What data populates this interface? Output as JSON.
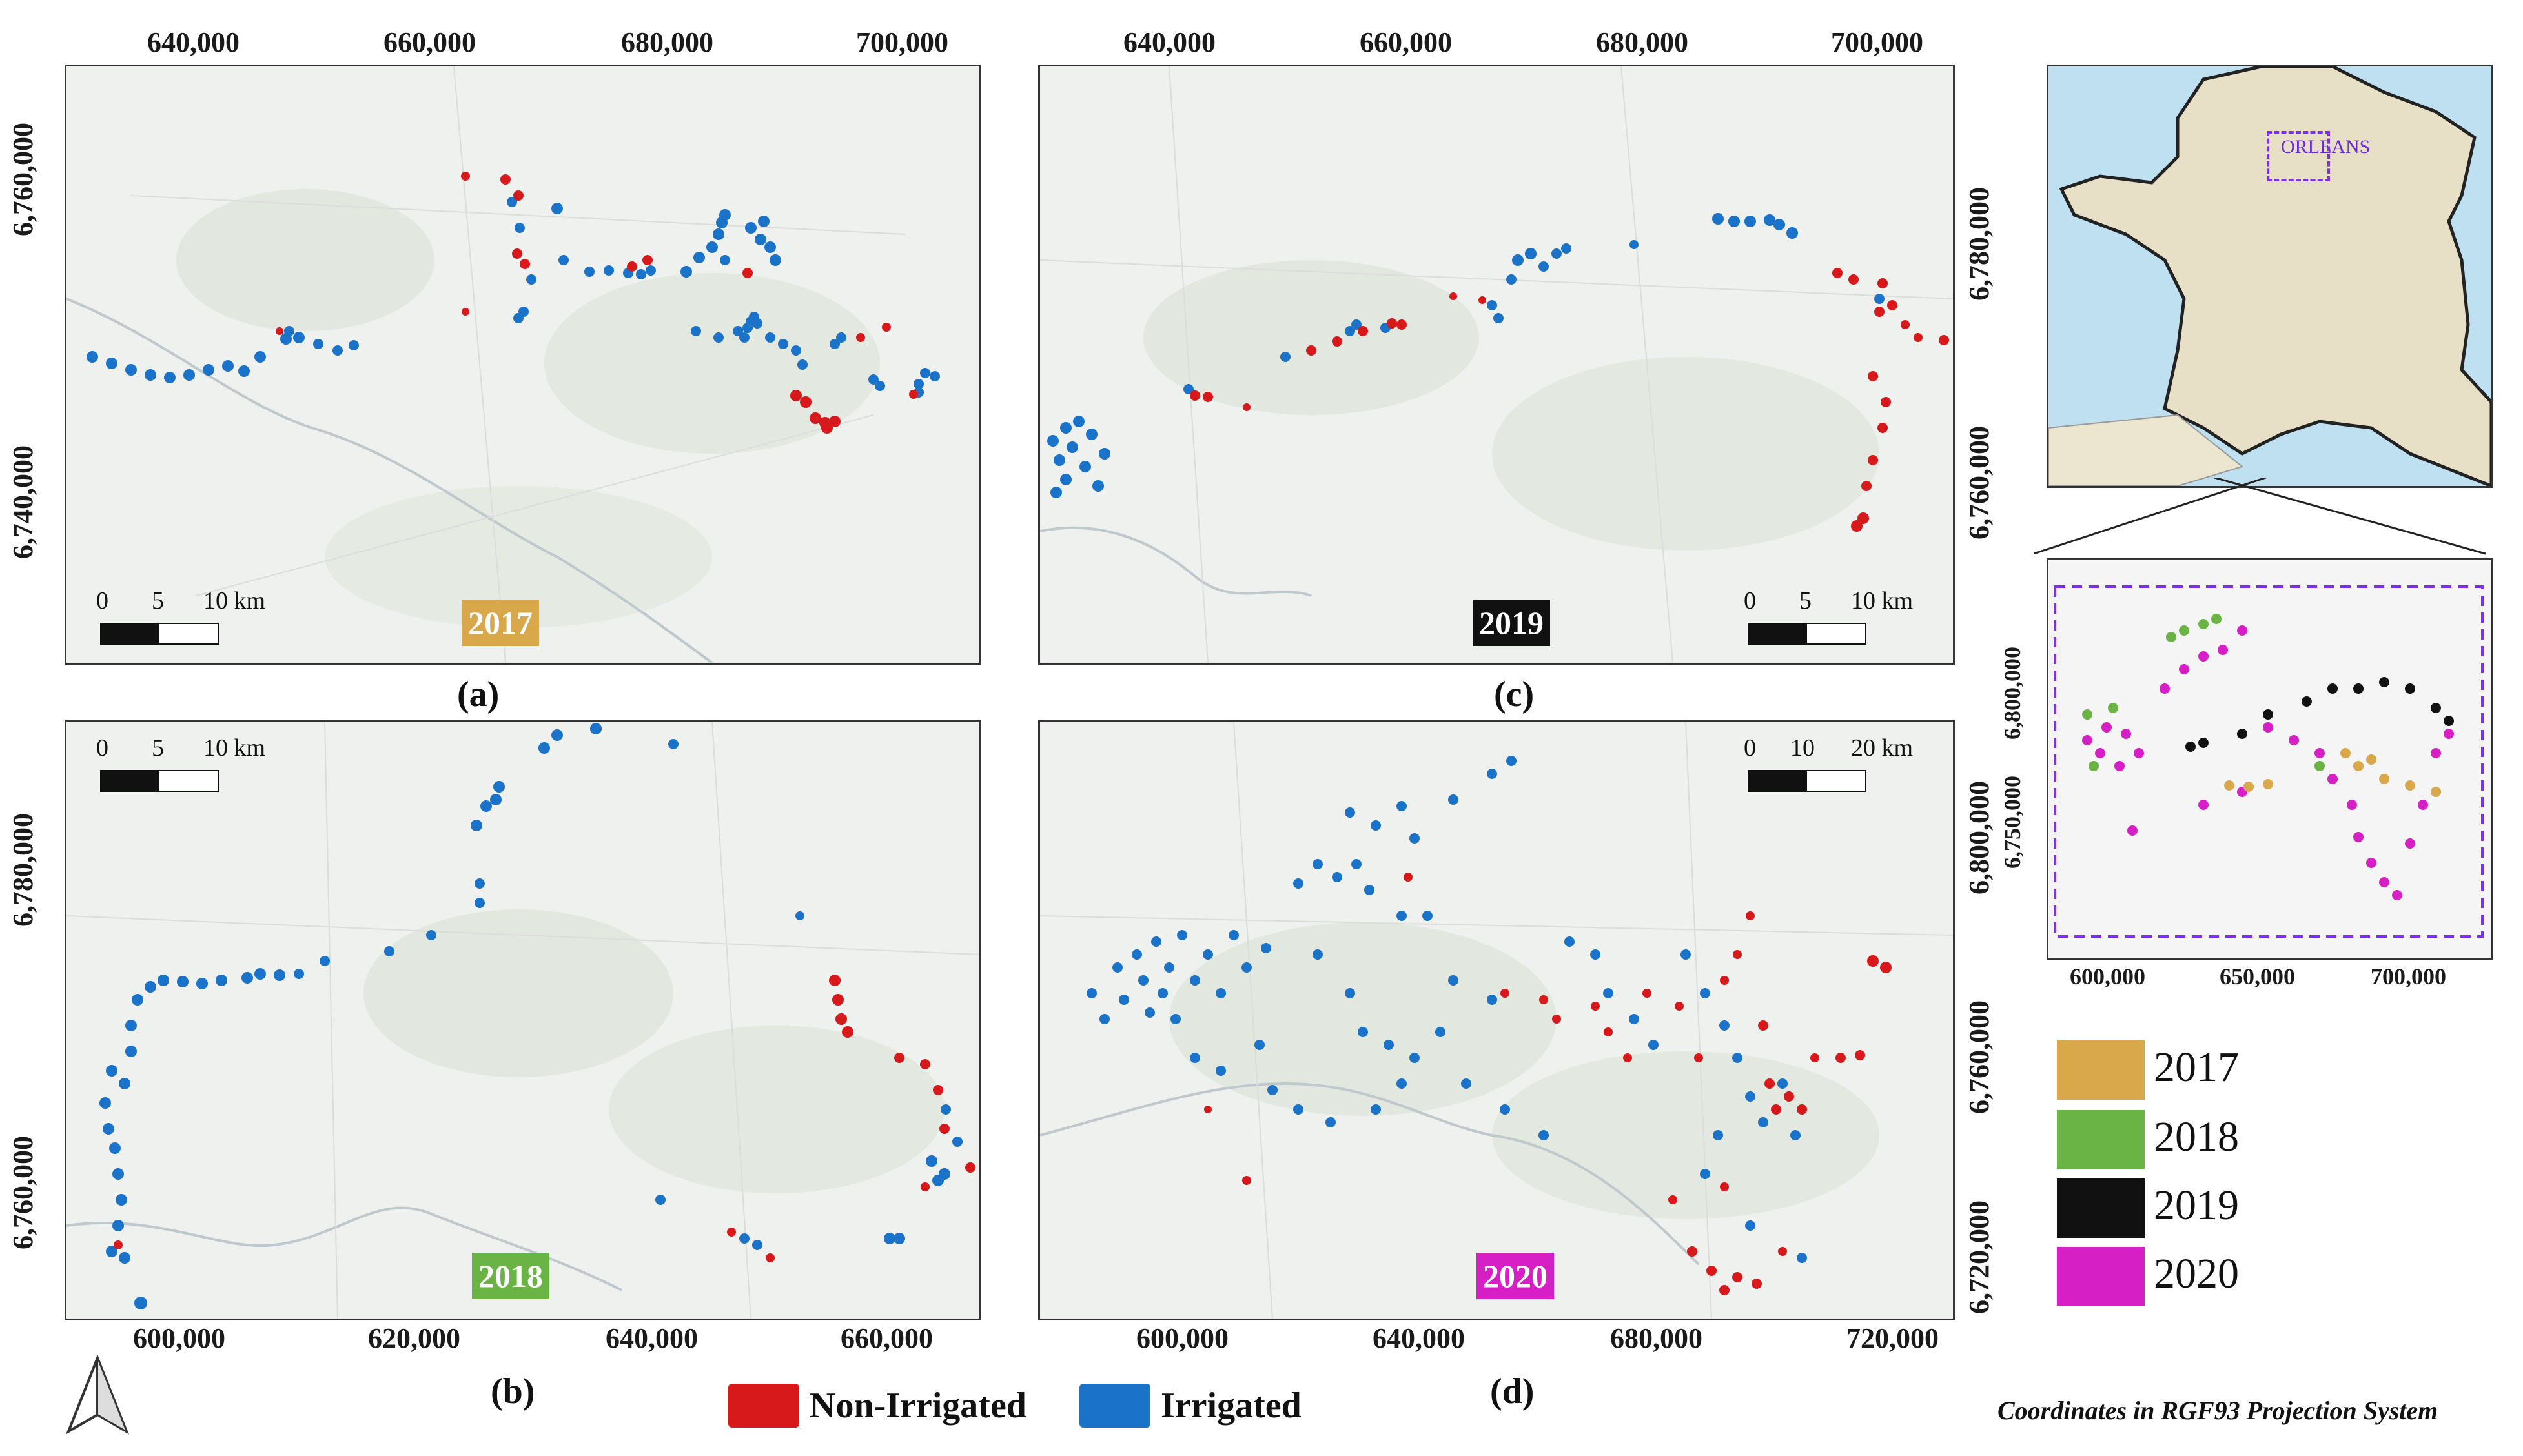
{
  "panels": {
    "a": {
      "label": "(a)",
      "year": "2017",
      "year_color": "#d9a84b",
      "x_ticks": [
        "640,000",
        "660,000",
        "680,000",
        "700,000"
      ],
      "y_ticks": [
        "6,760,000",
        "6,740,000"
      ],
      "scale": {
        "zero": "0",
        "mid": "5",
        "end": "10 km"
      }
    },
    "b": {
      "label": "(b)",
      "year": "2018",
      "year_color": "#6ab446",
      "x_ticks": [
        "600,000",
        "620,000",
        "640,000",
        "660,000"
      ],
      "y_ticks": [
        "6,780,000",
        "6,760,000"
      ],
      "scale": {
        "zero": "0",
        "mid": "5",
        "end": "10 km"
      }
    },
    "c": {
      "label": "(c)",
      "year": "2019",
      "year_color": "#111111",
      "x_ticks": [
        "640,000",
        "660,000",
        "680,000",
        "700,000"
      ],
      "y_ticks": [
        "6,780,000",
        "6,760,000"
      ],
      "scale": {
        "zero": "0",
        "mid": "5",
        "end": "10 km"
      }
    },
    "d": {
      "label": "(d)",
      "year": "2020",
      "year_color": "#d61fc4",
      "x_ticks": [
        "600,000",
        "640,000",
        "680,000",
        "720,000"
      ],
      "y_ticks": [
        "6,800,000",
        "6,760,000",
        "6,720,000"
      ],
      "scale": {
        "zero": "0",
        "mid": "10",
        "end": "20 km"
      }
    }
  },
  "inset": {
    "city_label": "ORLEANS",
    "x_ticks": [
      "600,000",
      "650,000",
      "700,000"
    ],
    "y_ticks": [
      "6,800,000",
      "6,750,000"
    ]
  },
  "legend": {
    "non_irrigated": {
      "label": "Non-Irrigated",
      "color": "#d7191c"
    },
    "irrigated": {
      "label": "Irrigated",
      "color": "#1a73c9"
    }
  },
  "year_legend": [
    {
      "label": "2017",
      "color": "#d9a84b"
    },
    {
      "label": "2018",
      "color": "#6ab446"
    },
    {
      "label": "2019",
      "color": "#111111"
    },
    {
      "label": "2020",
      "color": "#d61fc4"
    }
  ],
  "footnote": "Coordinates in RGF93 Projection System"
}
